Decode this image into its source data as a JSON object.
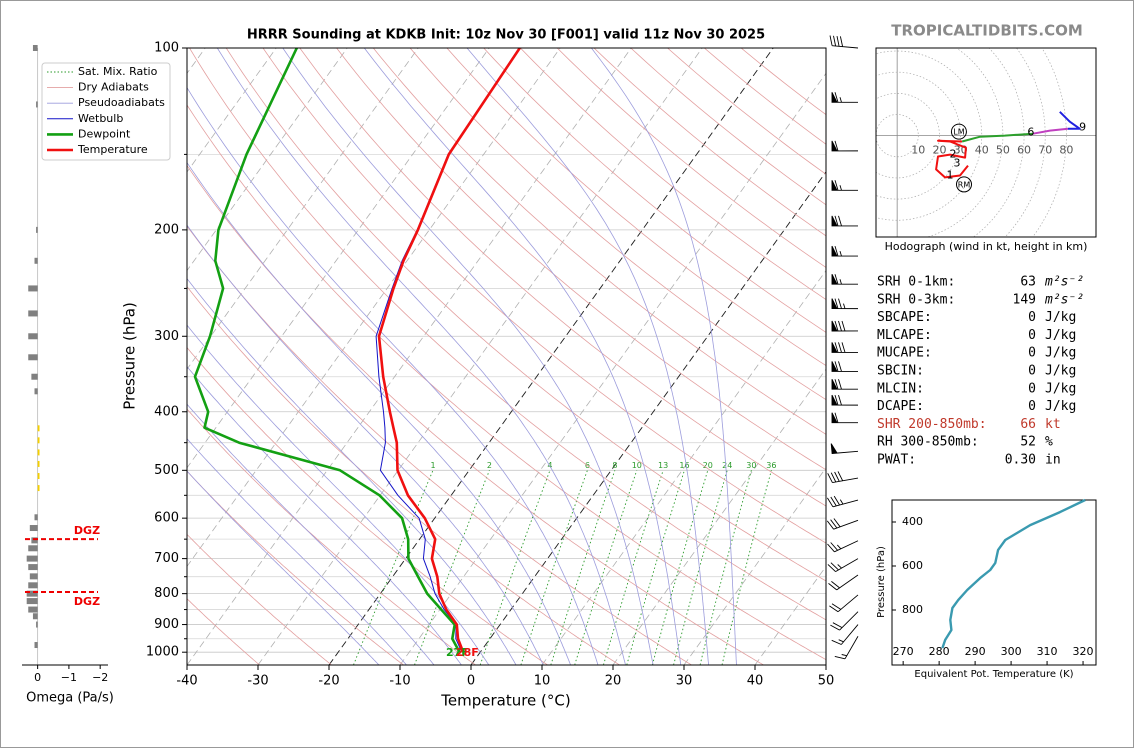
{
  "header": {
    "site": "TROPICALTIDBITS.COM"
  },
  "chart_data": [
    {
      "type": "skewt",
      "title": "HRRR Sounding at KDKB Init: 10z Nov 30 [F001] valid 11z Nov 30 2025",
      "xlabel": "Temperature (°C)",
      "ylabel": "Pressure (hPa)",
      "xlim": [
        -40,
        50
      ],
      "ylim": [
        1050,
        100
      ],
      "log_y": true,
      "xticks": [
        -40,
        -30,
        -20,
        -10,
        0,
        10,
        20,
        30,
        40,
        50
      ],
      "yticks": [
        100,
        200,
        300,
        400,
        500,
        600,
        700,
        800,
        900,
        1000
      ],
      "yminor": [
        150,
        250,
        350,
        450,
        550,
        650,
        750,
        850,
        950
      ],
      "grid": true,
      "legend": "upper left",
      "pressure": [
        1000,
        950,
        900,
        850,
        800,
        750,
        700,
        650,
        600,
        550,
        500,
        450,
        425,
        400,
        350,
        300,
        250,
        225,
        200,
        150,
        100
      ],
      "series": [
        {
          "name": "Wetbulb",
          "color": "#1414c8",
          "width": 1,
          "values": [
            -2.6,
            -4.8,
            -6.2,
            -9.4,
            -12.3,
            -14.7,
            -17.5,
            -19.2,
            -22.2,
            -27.5,
            -32.5,
            -34.6,
            -36.2,
            -38,
            -42.2,
            -46.7,
            -49.3,
            -50.7,
            -51.7,
            -55,
            -55.8
          ]
        },
        {
          "name": "Dewpoint",
          "color": "#13a013",
          "width": 2.6,
          "values": [
            -2.9,
            -5.3,
            -6.4,
            -9.8,
            -13.4,
            -16.4,
            -19.6,
            -21.6,
            -24.6,
            -30.1,
            -38.2,
            -55.2,
            -61.6,
            -62.7,
            -68.1,
            -70.1,
            -73.1,
            -77,
            -79.7,
            -83.4,
            -87.1
          ]
        },
        {
          "name": "Temperature",
          "color": "#f01010",
          "width": 2.6,
          "values": [
            -2.4,
            -4.5,
            -6.1,
            -9.1,
            -11.7,
            -13.7,
            -16.3,
            -17.8,
            -21.4,
            -26.1,
            -30.1,
            -33,
            -35,
            -37.1,
            -41.6,
            -46.3,
            -49.1,
            -50.5,
            -51.6,
            -54.9,
            -55.7
          ]
        }
      ],
      "reference_lines": [
        {
          "name": "Sat. Mix. Ratio",
          "color": "#2a9a2a",
          "kind": "mixing",
          "levels": [
            1,
            2,
            4,
            6,
            8,
            10,
            13,
            16,
            20,
            24,
            30,
            36
          ]
        },
        {
          "name": "Dry Adiabats",
          "color": "#e3a0a0",
          "kind": "dry",
          "levels": [
            240,
            250,
            260,
            270,
            280,
            290,
            300,
            310,
            320,
            330,
            340,
            350,
            360,
            370,
            380,
            390,
            400,
            410,
            420,
            430,
            440,
            450,
            460,
            470,
            480
          ]
        },
        {
          "name": "Pseudoadiabats",
          "color": "#9c9cdc",
          "kind": "moist",
          "levels": [
            -16,
            -12,
            -8,
            -4,
            0,
            4,
            8,
            12,
            16,
            20,
            24,
            28,
            32,
            36
          ]
        }
      ],
      "isotherm_step": 10,
      "highlight_isotherms": [
        -20,
        0
      ],
      "surface_labels": [
        {
          "label": "27F",
          "color": "#13a013"
        },
        {
          "label": "28F",
          "color": "#f01010"
        }
      ],
      "wind_barbs": {
        "pressure": [
          100,
          123,
          148,
          172,
          197,
          221,
          246,
          270,
          294,
          319,
          343,
          367,
          390,
          417,
          465,
          515,
          560,
          605,
          654,
          700,
          745,
          804,
          857,
          900,
          941
        ],
        "speed": [
          40,
          65,
          60,
          65,
          70,
          65,
          65,
          75,
          80,
          80,
          70,
          70,
          70,
          60,
          50,
          40,
          35,
          30,
          25,
          25,
          20,
          20,
          20,
          15,
          15
        ],
        "direction": [
          275,
          270,
          270,
          270,
          270,
          270,
          270,
          270,
          270,
          270,
          270,
          270,
          270,
          270,
          265,
          260,
          255,
          250,
          245,
          240,
          235,
          230,
          225,
          220,
          210
        ]
      }
    },
    {
      "type": "hodograph",
      "caption": "Hodograph (wind in kt, height in km)",
      "ulim": [
        -10,
        94
      ],
      "vlim": [
        -48,
        41.5
      ],
      "rings": [
        10,
        20,
        30,
        40,
        50,
        60,
        70,
        80
      ],
      "segments": [
        {
          "color": "#f01010",
          "u": [
            33.5,
            29.7,
            22.6,
            18.4,
            19.3,
            25,
            32.1,
            32.5,
            25,
            19.3,
            30.7
          ],
          "v": [
            -14.2,
            -18.9,
            -19.8,
            -16,
            -9.9,
            -9,
            -10.4,
            -5.7,
            -2.8,
            -2.4,
            -2.8
          ]
        },
        {
          "color": "#2ca02c",
          "u": [
            30.7,
            39.2,
            50.9,
            64.2
          ],
          "v": [
            -2.8,
            -0.5,
            0,
            0.9
          ]
        },
        {
          "color": "#c040c0",
          "u": [
            64.2,
            72.2,
            80.7
          ],
          "v": [
            0.9,
            2.4,
            3.3
          ]
        },
        {
          "color": "#2020e0",
          "u": [
            80.7,
            86.3,
            81.6,
            76.9
          ],
          "v": [
            3.3,
            3.3,
            6.6,
            11.3
          ]
        }
      ],
      "height_labels": [
        {
          "label": "1",
          "u": 25,
          "v": -18.9
        },
        {
          "label": "2",
          "u": 26.4,
          "v": -9
        },
        {
          "label": "3",
          "u": 28.3,
          "v": -13.2
        },
        {
          "label": "6",
          "u": 63.2,
          "v": 1.4
        },
        {
          "label": "9",
          "u": 87.7,
          "v": 3.8
        }
      ],
      "storm_motion": [
        {
          "label": "LM",
          "u": 29.2,
          "v": 1.9
        },
        {
          "label": "RM",
          "u": 31.6,
          "v": -23.1
        }
      ]
    },
    {
      "type": "line",
      "xlabel": "Equivalent Pot. Temperature (K)",
      "ylabel": "Pressure (hPa)",
      "xlim": [
        266.9,
        323.6
      ],
      "ylim": [
        1050,
        300
      ],
      "xticks": [
        270,
        280,
        290,
        300,
        310,
        320
      ],
      "yticks": [
        400,
        600,
        800
      ],
      "color": "#3a9ab0",
      "x": [
        280.9,
        281.7,
        283.4,
        283.1,
        283.7,
        285.3,
        287.8,
        291.4,
        294.2,
        295.6,
        296.4,
        298.4,
        305.3,
        313.6,
        320.6
      ],
      "values": [
        973,
        936,
        891,
        845,
        791,
        755,
        709,
        655,
        618,
        586,
        527,
        482,
        414,
        355,
        300
      ]
    },
    {
      "type": "bar",
      "xlabel": "Omega (Pa/s)",
      "xlim": [
        0.5,
        -2.25
      ],
      "xticks": [
        0,
        {
          "value": -1,
          "label": "−1"
        },
        {
          "value": -2,
          "label": "−2"
        }
      ],
      "pressure": [
        100,
        124,
        200,
        225,
        250,
        275,
        300,
        325,
        350,
        370,
        426,
        446,
        467,
        488,
        511,
        535,
        598,
        623,
        653,
        673,
        700,
        723,
        749,
        775,
        800,
        823,
        850,
        872,
        900,
        973
      ],
      "values": [
        0.15,
        0.05,
        0.05,
        0.1,
        0.3,
        0.3,
        0.3,
        0.3,
        0.2,
        0.1,
        -0.06,
        -0.06,
        -0.06,
        -0.06,
        -0.06,
        -0.06,
        0.1,
        0.25,
        0.2,
        0.3,
        0.35,
        0.3,
        0.25,
        0.3,
        0.35,
        0.35,
        0.3,
        0.15,
        0.05,
        0.1
      ],
      "colors": [
        "#808080",
        "#808080",
        "#808080",
        "#808080",
        "#808080",
        "#808080",
        "#808080",
        "#808080",
        "#808080",
        "#808080",
        "#f5d000",
        "#f5d000",
        "#f5d000",
        "#f5d000",
        "#f5d000",
        "#f5d000",
        "#808080",
        "#808080",
        "#808080",
        "#808080",
        "#808080",
        "#808080",
        "#808080",
        "#808080",
        "#808080",
        "#808080",
        "#808080",
        "#808080",
        "#808080",
        "#808080"
      ],
      "dgz": {
        "label": "DGZ",
        "pressure": [
          650,
          795
        ],
        "color": "#ee0000"
      }
    }
  ],
  "stats": {
    "rows": [
      {
        "label": "SRH 0-1km:",
        "value": 63,
        "unit": "m²s⁻²"
      },
      {
        "label": "SRH 0-3km:",
        "value": 149,
        "unit": "m²s⁻²"
      },
      {
        "label": "SBCAPE:",
        "value": 0,
        "unit": "J/kg"
      },
      {
        "label": "MLCAPE:",
        "value": 0,
        "unit": "J/kg"
      },
      {
        "label": "MUCAPE:",
        "value": 0,
        "unit": "J/kg"
      },
      {
        "label": "SBCIN:",
        "value": 0,
        "unit": "J/kg"
      },
      {
        "label": "MLCIN:",
        "value": 0,
        "unit": "J/kg"
      },
      {
        "label": "DCAPE:",
        "value": 0,
        "unit": "J/kg"
      },
      {
        "label": "SHR 200-850mb:",
        "value": 66,
        "unit": "kt",
        "color": "#c0392b"
      },
      {
        "label": "RH 300-850mb:",
        "value": 52,
        "unit": "%"
      },
      {
        "label": "PWAT:",
        "value": {
          "value": 0.3,
          "label": "0.30"
        },
        "unit": "in"
      }
    ]
  }
}
